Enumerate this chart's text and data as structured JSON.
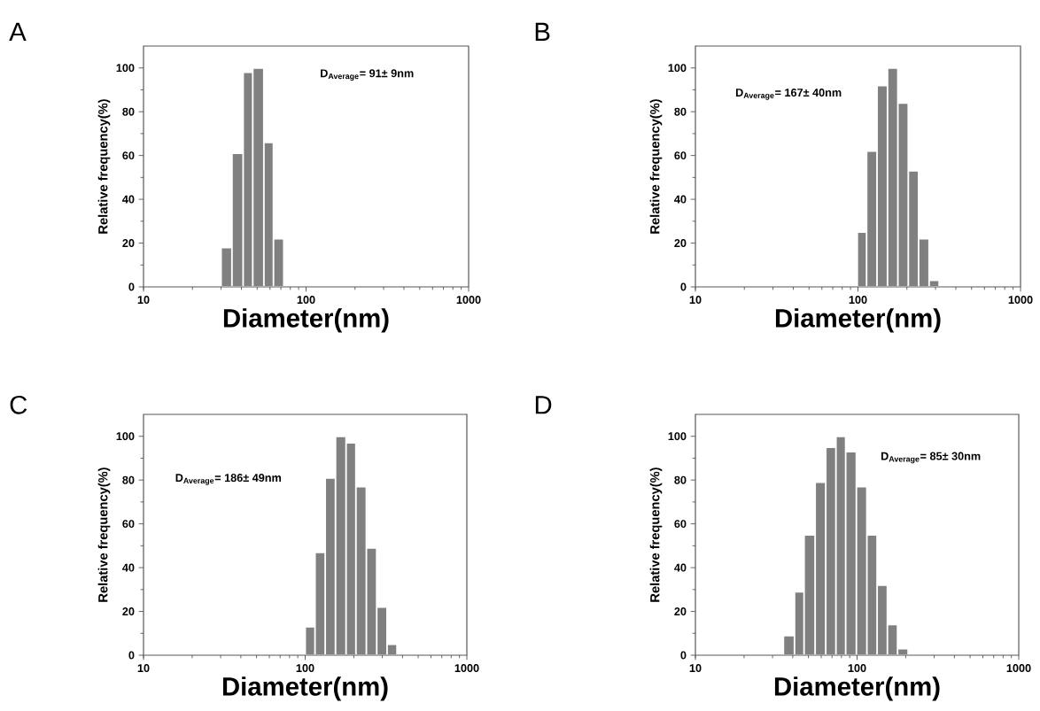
{
  "chart_data": [
    {
      "type": "histogram",
      "title": "A",
      "xlabel": "Diameter(nm)",
      "ylabel": "Relative frequency(%)",
      "log": "x",
      "color": "#808080",
      "bins": [
        30,
        35,
        41,
        47,
        55,
        63,
        73
      ],
      "values": [
        18,
        61,
        98,
        100,
        66,
        22
      ],
      "xlim": [
        10,
        1000
      ],
      "xticks": [
        10,
        100,
        1000
      ],
      "ylim": [
        0,
        110
      ],
      "yticks": [
        0,
        20,
        40,
        60,
        80,
        100
      ],
      "annotations": [
        "D$_{Average}$= 91± 9nm"
      ]
    },
    {
      "type": "histogram",
      "title": "B",
      "xlabel": "Diameter(nm)",
      "ylabel": "Relative frequency(%)",
      "log": "x",
      "color": "#808080",
      "bins": [
        99,
        113,
        131,
        152,
        176,
        204,
        236,
        274,
        316
      ],
      "values": [
        25,
        62,
        92,
        100,
        84,
        53,
        22,
        3
      ],
      "xlim": [
        10,
        1000
      ],
      "xticks": [
        10,
        100,
        1000
      ],
      "ylim": [
        0,
        110
      ],
      "yticks": [
        0,
        20,
        40,
        60,
        80,
        100
      ],
      "annotations": [
        "D$_{Average}$= 167± 40nm"
      ]
    },
    {
      "type": "histogram",
      "title": "C",
      "xlabel": "Diameter(nm)",
      "ylabel": "Relative frequency(%)",
      "log": "x",
      "color": "#808080",
      "bins": [
        100,
        115,
        133,
        154,
        179,
        206,
        239,
        277,
        321,
        370
      ],
      "values": [
        13,
        47,
        81,
        100,
        97,
        77,
        49,
        22,
        5
      ],
      "xlim": [
        10,
        1000
      ],
      "xticks": [
        10,
        100,
        1000
      ],
      "ylim": [
        0,
        110
      ],
      "yticks": [
        0,
        20,
        40,
        60,
        80,
        100
      ],
      "annotations": [
        "D$_{Average}$= 186± 49nm"
      ]
    },
    {
      "type": "histogram",
      "title": "D",
      "xlabel": "Diameter(nm)",
      "ylabel": "Relative frequency(%)",
      "log": "x",
      "color": "#808080",
      "bins": [
        35,
        41,
        47,
        55,
        64,
        74,
        85,
        99,
        115,
        133,
        154,
        178,
        207
      ],
      "values": [
        9,
        29,
        55,
        79,
        95,
        100,
        93,
        77,
        55,
        32,
        14,
        3
      ],
      "xlim": [
        10,
        1000
      ],
      "xticks": [
        10,
        100,
        1000
      ],
      "ylim": [
        0,
        110
      ],
      "yticks": [
        0,
        20,
        40,
        60,
        80,
        100
      ],
      "annotations": [
        "D$_{Average}$= 85± 30nm"
      ]
    }
  ]
}
